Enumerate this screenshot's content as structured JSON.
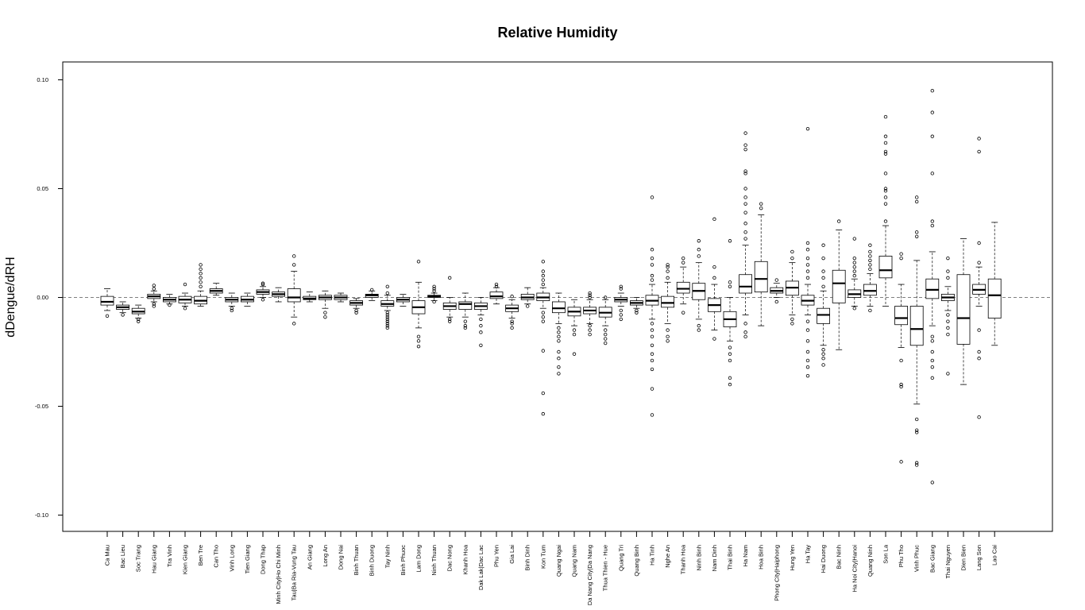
{
  "chart_data": {
    "type": "boxplot",
    "title": "Relative Humidity",
    "xlabel": "",
    "ylabel": "dDengue/dRH",
    "ylim": [
      -0.108,
      0.108
    ],
    "yticks": [
      -0.1,
      -0.05,
      0.0,
      0.05,
      0.1
    ],
    "ytick_labels": [
      "-0.10",
      "-0.05",
      "0.00",
      "0.05",
      "0.10"
    ],
    "reference_line": 0.0,
    "grid": false,
    "categories": [
      "Ca Mau",
      "Bac Lieu",
      "Soc Trang",
      "Hau Giang",
      "Tra Vinh",
      "Kien Giang",
      "Ben Tre",
      "Can Tho",
      "Vinh Long",
      "Tien Giang",
      "Dong Thap",
      "Minh City|Ho Chi Minh",
      "Tau|Ba Ria-Vung Tau",
      "An Giang",
      "Long An",
      "Dong Nai",
      "Binh Thuan",
      "Binh Duong",
      "Tay Ninh",
      "Binh Phuoc",
      "Lam Dong",
      "Ninh Thuan",
      "Dac Nong",
      "Khanh Hoa",
      "Dak Lak|Dac Lac",
      "Phu Yen",
      "Gia Lai",
      "Binh Dinh",
      "Kon Tum",
      "Quang Ngai",
      "Quang Nam",
      "Da Nang City|Da Nang",
      "Thua Thien - Hue",
      "Quang Tri",
      "Quang Binh",
      "Ha Tinh",
      "Nghe An",
      "Thanh Hoa",
      "Ninh Binh",
      "Nam Dinh",
      "Thai Binh",
      "Ha Nam",
      "Hoa Binh",
      "Phong City|Haiphong",
      "Hung Yen",
      "Ha Tay",
      "Hai Duong",
      "Bac Ninh",
      "Ha Noi City|Hanoi",
      "Quang Ninh",
      "Son La",
      "Phu Tho",
      "Vinh Phuc",
      "Bac Giang",
      "Thai Nguyen",
      "Dien Bien",
      "Lang Son",
      "Lao Cai"
    ],
    "boxes": [
      {
        "whislo": -0.006,
        "q1": -0.0035,
        "med": -0.002,
        "q3": 0.0005,
        "whishi": 0.004,
        "fliers": [
          -0.0085
        ]
      },
      {
        "whislo": -0.007,
        "q1": -0.0055,
        "med": -0.0045,
        "q3": -0.0035,
        "whishi": -0.002,
        "fliers": [
          -0.008
        ]
      },
      {
        "whislo": -0.0095,
        "q1": -0.0075,
        "med": -0.0065,
        "q3": -0.005,
        "whishi": -0.0035,
        "fliers": [
          -0.01,
          -0.011
        ]
      },
      {
        "whislo": -0.002,
        "q1": -0.0005,
        "med": 0.0005,
        "q3": 0.0015,
        "whishi": 0.003,
        "fliers": [
          0.004,
          0.0055,
          -0.003,
          -0.004
        ]
      },
      {
        "whislo": -0.003,
        "q1": -0.002,
        "med": -0.001,
        "q3": 0.0,
        "whishi": 0.0015,
        "fliers": [
          -0.0035
        ]
      },
      {
        "whislo": -0.004,
        "q1": -0.0025,
        "med": -0.001,
        "q3": 0.0005,
        "whishi": 0.002,
        "fliers": [
          0.006,
          -0.005
        ]
      },
      {
        "whislo": -0.004,
        "q1": -0.003,
        "med": -0.0015,
        "q3": 0.0005,
        "whishi": 0.003,
        "fliers": [
          0.005,
          0.007,
          0.009,
          0.011,
          0.013,
          0.015
        ]
      },
      {
        "whislo": 0.001,
        "q1": 0.002,
        "med": 0.003,
        "q3": 0.004,
        "whishi": 0.0065,
        "fliers": []
      },
      {
        "whislo": -0.004,
        "q1": -0.002,
        "med": -0.001,
        "q3": 0.0,
        "whishi": 0.002,
        "fliers": [
          -0.005,
          -0.006
        ]
      },
      {
        "whislo": -0.004,
        "q1": -0.002,
        "med": -0.001,
        "q3": 0.0005,
        "whishi": 0.002,
        "fliers": []
      },
      {
        "whislo": 0.0,
        "q1": 0.0015,
        "med": 0.0025,
        "q3": 0.0035,
        "whishi": 0.005,
        "fliers": [
          0.006,
          0.0065,
          -0.001
        ]
      },
      {
        "whislo": -0.002,
        "q1": 0.0005,
        "med": 0.0015,
        "q3": 0.0025,
        "whishi": 0.0045,
        "fliers": []
      },
      {
        "whislo": -0.009,
        "q1": -0.002,
        "med": 0.0,
        "q3": 0.004,
        "whishi": 0.012,
        "fliers": [
          0.015,
          0.019,
          -0.012
        ]
      },
      {
        "whislo": -0.002,
        "q1": -0.001,
        "med": -0.0005,
        "q3": 0.0005,
        "whishi": 0.0025,
        "fliers": []
      },
      {
        "whislo": -0.005,
        "q1": -0.001,
        "med": 0.0,
        "q3": 0.001,
        "whishi": 0.003,
        "fliers": [
          -0.007,
          -0.009
        ]
      },
      {
        "whislo": -0.002,
        "q1": -0.001,
        "med": 0.0,
        "q3": 0.001,
        "whishi": 0.002,
        "fliers": []
      },
      {
        "whislo": -0.005,
        "q1": -0.0035,
        "med": -0.0025,
        "q3": -0.0015,
        "whishi": -0.0005,
        "fliers": [
          -0.006,
          -0.007
        ]
      },
      {
        "whislo": -0.0015,
        "q1": 0.0,
        "med": 0.001,
        "q3": 0.0015,
        "whishi": 0.003,
        "fliers": [
          0.0035
        ]
      },
      {
        "whislo": -0.006,
        "q1": -0.004,
        "med": -0.003,
        "q3": -0.0015,
        "whishi": 0.001,
        "fliers": [
          -0.007,
          -0.008,
          -0.009,
          -0.01,
          -0.011,
          -0.012,
          -0.013,
          -0.014,
          0.002,
          0.005
        ]
      },
      {
        "whislo": -0.004,
        "q1": -0.002,
        "med": -0.001,
        "q3": 0.0,
        "whishi": 0.0015,
        "fliers": []
      },
      {
        "whislo": -0.014,
        "q1": -0.0075,
        "med": -0.0045,
        "q3": -0.0015,
        "whishi": 0.007,
        "fliers": [
          0.0165,
          -0.018,
          -0.02,
          -0.0225
        ]
      },
      {
        "whislo": -0.0015,
        "q1": 0.0,
        "med": 0.0005,
        "q3": 0.001,
        "whishi": 0.002,
        "fliers": [
          0.003,
          0.004,
          0.005,
          -0.002
        ]
      },
      {
        "whislo": -0.009,
        "q1": -0.0055,
        "med": -0.004,
        "q3": -0.0025,
        "whishi": 0.0,
        "fliers": [
          0.009,
          -0.01,
          -0.011
        ]
      },
      {
        "whislo": -0.009,
        "q1": -0.0055,
        "med": -0.003,
        "q3": -0.002,
        "whishi": 0.002,
        "fliers": [
          -0.011,
          -0.013,
          -0.014
        ]
      },
      {
        "whislo": -0.008,
        "q1": -0.0055,
        "med": -0.004,
        "q3": -0.0025,
        "whishi": 0.0,
        "fliers": [
          -0.01,
          -0.013,
          -0.016,
          -0.022
        ]
      },
      {
        "whislo": -0.003,
        "q1": -0.0005,
        "med": 0.0005,
        "q3": 0.0025,
        "whishi": 0.0045,
        "fliers": [
          0.005,
          0.006
        ]
      },
      {
        "whislo": -0.0095,
        "q1": -0.0065,
        "med": -0.005,
        "q3": -0.0035,
        "whishi": -0.001,
        "fliers": [
          0.0005,
          -0.011,
          -0.012,
          -0.014
        ]
      },
      {
        "whislo": -0.003,
        "q1": -0.001,
        "med": 0.0,
        "q3": 0.0015,
        "whishi": 0.0045,
        "fliers": [
          -0.004
        ]
      },
      {
        "whislo": -0.005,
        "q1": -0.0015,
        "med": 0.0,
        "q3": 0.002,
        "whishi": 0.0045,
        "fliers": [
          0.006,
          0.008,
          0.01,
          0.012,
          0.0165,
          -0.007,
          -0.009,
          -0.011,
          -0.0245,
          -0.044,
          -0.0535
        ]
      },
      {
        "whislo": -0.012,
        "q1": -0.007,
        "med": -0.005,
        "q3": -0.002,
        "whishi": 0.002,
        "fliers": [
          -0.014,
          -0.016,
          -0.018,
          -0.02,
          -0.025,
          -0.028,
          -0.032,
          -0.035
        ]
      },
      {
        "whislo": -0.013,
        "q1": -0.0085,
        "med": -0.0065,
        "q3": -0.0045,
        "whishi": -0.001,
        "fliers": [
          -0.015,
          -0.017,
          -0.026
        ]
      },
      {
        "whislo": -0.012,
        "q1": -0.0075,
        "med": -0.006,
        "q3": -0.0045,
        "whishi": -0.001,
        "fliers": [
          -0.013,
          -0.015,
          -0.017,
          0.0,
          0.001,
          0.002
        ]
      },
      {
        "whislo": -0.013,
        "q1": -0.009,
        "med": -0.007,
        "q3": -0.0045,
        "whishi": -0.001,
        "fliers": [
          -0.015,
          -0.017,
          -0.019,
          -0.021,
          0.0
        ]
      },
      {
        "whislo": -0.004,
        "q1": -0.002,
        "med": -0.001,
        "q3": 0.0,
        "whishi": 0.002,
        "fliers": [
          0.004,
          0.005,
          -0.006,
          -0.008,
          -0.01
        ]
      },
      {
        "whislo": -0.005,
        "q1": -0.0035,
        "med": -0.0025,
        "q3": -0.0015,
        "whishi": 0.0,
        "fliers": [
          -0.006,
          -0.007
        ]
      },
      {
        "whislo": -0.01,
        "q1": -0.0035,
        "med": -0.0015,
        "q3": 0.001,
        "whishi": 0.006,
        "fliers": [
          0.008,
          0.01,
          0.015,
          0.018,
          0.022,
          0.046,
          -0.012,
          -0.015,
          -0.018,
          -0.022,
          -0.026,
          -0.029,
          -0.033,
          -0.042,
          -0.054
        ]
      },
      {
        "whislo": -0.012,
        "q1": -0.0045,
        "med": -0.0025,
        "q3": 0.0005,
        "whishi": 0.007,
        "fliers": [
          0.009,
          0.012,
          0.014,
          0.015,
          -0.015,
          -0.018,
          -0.02
        ]
      },
      {
        "whislo": -0.003,
        "q1": 0.002,
        "med": 0.004,
        "q3": 0.007,
        "whishi": 0.014,
        "fliers": [
          0.016,
          0.018,
          -0.007
        ]
      },
      {
        "whislo": -0.01,
        "q1": -0.001,
        "med": 0.003,
        "q3": 0.0065,
        "whishi": 0.016,
        "fliers": [
          0.019,
          0.022,
          0.026,
          -0.013,
          -0.015
        ]
      },
      {
        "whislo": -0.015,
        "q1": -0.0065,
        "med": -0.0035,
        "q3": -0.0005,
        "whishi": 0.006,
        "fliers": [
          0.009,
          0.014,
          0.036,
          -0.019
        ]
      },
      {
        "whislo": -0.02,
        "q1": -0.0135,
        "med": -0.01,
        "q3": -0.0065,
        "whishi": 0.0,
        "fliers": [
          0.005,
          0.007,
          0.026,
          -0.023,
          -0.026,
          -0.029,
          -0.037,
          -0.04
        ]
      },
      {
        "whislo": -0.008,
        "q1": 0.002,
        "med": 0.005,
        "q3": 0.0105,
        "whishi": 0.024,
        "fliers": [
          0.027,
          0.03,
          0.034,
          0.039,
          0.043,
          0.046,
          0.05,
          0.057,
          0.058,
          0.068,
          0.07,
          0.0755,
          -0.012,
          -0.016,
          -0.018
        ]
      },
      {
        "whislo": -0.013,
        "q1": 0.0025,
        "med": 0.0085,
        "q3": 0.0165,
        "whishi": 0.038,
        "fliers": [
          0.041,
          0.043
        ]
      },
      {
        "whislo": 0.0,
        "q1": 0.002,
        "med": 0.003,
        "q3": 0.0045,
        "whishi": 0.0065,
        "fliers": [
          0.008,
          -0.002
        ]
      },
      {
        "whislo": -0.008,
        "q1": 0.001,
        "med": 0.0045,
        "q3": 0.0075,
        "whishi": 0.016,
        "fliers": [
          0.018,
          0.021,
          -0.01,
          -0.012
        ]
      },
      {
        "whislo": -0.008,
        "q1": -0.0035,
        "med": -0.0015,
        "q3": 0.001,
        "whishi": 0.006,
        "fliers": [
          0.009,
          0.012,
          0.015,
          0.018,
          0.022,
          0.025,
          0.0775,
          -0.011,
          -0.015,
          -0.02,
          -0.025,
          -0.029,
          -0.032,
          -0.036
        ]
      },
      {
        "whislo": -0.022,
        "q1": -0.012,
        "med": -0.008,
        "q3": -0.005,
        "whishi": 0.003,
        "fliers": [
          0.005,
          0.009,
          0.012,
          0.018,
          0.024,
          -0.024,
          -0.026,
          -0.028,
          -0.031
        ]
      },
      {
        "whislo": -0.024,
        "q1": -0.0025,
        "med": 0.0065,
        "q3": 0.0125,
        "whishi": 0.031,
        "fliers": [
          0.035
        ]
      },
      {
        "whislo": -0.004,
        "q1": 0.0,
        "med": 0.0015,
        "q3": 0.0035,
        "whishi": 0.0085,
        "fliers": [
          0.01,
          0.012,
          0.014,
          0.016,
          0.018,
          0.027,
          -0.005
        ]
      },
      {
        "whislo": -0.004,
        "q1": 0.001,
        "med": 0.003,
        "q3": 0.006,
        "whishi": 0.011,
        "fliers": [
          0.013,
          0.015,
          0.017,
          0.019,
          0.021,
          0.024,
          -0.006
        ]
      },
      {
        "whislo": -0.004,
        "q1": 0.009,
        "med": 0.0125,
        "q3": 0.019,
        "whishi": 0.033,
        "fliers": [
          0.035,
          0.043,
          0.046,
          0.049,
          0.05,
          0.057,
          0.066,
          0.067,
          0.071,
          0.074,
          0.083
        ]
      },
      {
        "whislo": -0.023,
        "q1": -0.0125,
        "med": -0.0095,
        "q3": -0.004,
        "whishi": 0.006,
        "fliers": [
          0.018,
          0.02,
          -0.029,
          -0.04,
          -0.041,
          -0.0755
        ]
      },
      {
        "whislo": -0.049,
        "q1": -0.022,
        "med": -0.0145,
        "q3": -0.004,
        "whishi": 0.017,
        "fliers": [
          0.028,
          0.03,
          0.044,
          0.046,
          -0.056,
          -0.061,
          -0.062,
          -0.076,
          -0.077
        ]
      },
      {
        "whislo": -0.013,
        "q1": -0.0005,
        "med": 0.0035,
        "q3": 0.0085,
        "whishi": 0.021,
        "fliers": [
          0.033,
          0.035,
          0.057,
          0.074,
          0.085,
          0.095,
          -0.018,
          -0.02,
          -0.025,
          -0.029,
          -0.032,
          -0.037,
          -0.085
        ]
      },
      {
        "whislo": -0.006,
        "q1": -0.0015,
        "med": 0.0,
        "q3": 0.0015,
        "whishi": 0.005,
        "fliers": [
          0.009,
          0.012,
          0.018,
          -0.008,
          -0.011,
          -0.014,
          -0.017,
          -0.035
        ]
      },
      {
        "whislo": -0.04,
        "q1": -0.0215,
        "med": -0.0095,
        "q3": 0.0105,
        "whishi": 0.027,
        "fliers": []
      },
      {
        "whislo": -0.004,
        "q1": 0.0015,
        "med": 0.0035,
        "q3": 0.006,
        "whishi": 0.014,
        "fliers": [
          0.016,
          0.025,
          0.067,
          0.073,
          -0.015,
          -0.025,
          -0.028,
          -0.055
        ]
      },
      {
        "whislo": -0.022,
        "q1": -0.0095,
        "med": 0.001,
        "q3": 0.0085,
        "whishi": 0.0345,
        "fliers": []
      }
    ]
  }
}
